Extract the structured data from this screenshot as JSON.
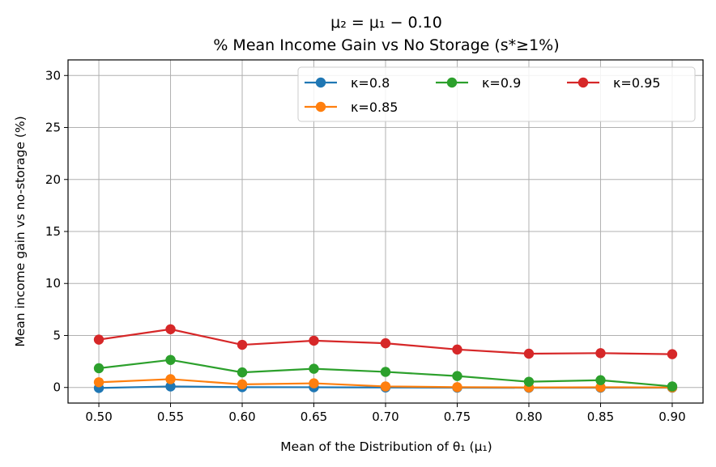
{
  "chart_data": {
    "type": "line",
    "title": "μ₂ = μ₁ − 0.10",
    "subtitle": "% Mean Income Gain vs No Storage (s*≥1%)",
    "xlabel": "Mean of the Distribution of θ₁ (μ₁)",
    "ylabel": "Mean income gain vs no-storage (%)",
    "x": [
      0.5,
      0.55,
      0.6,
      0.65,
      0.7,
      0.75,
      0.8,
      0.85,
      0.9
    ],
    "x_tick_labels": [
      "0.50",
      "0.55",
      "0.60",
      "0.65",
      "0.70",
      "0.75",
      "0.80",
      "0.85",
      "0.90"
    ],
    "y_ticks": [
      0,
      5,
      10,
      15,
      20,
      25,
      30
    ],
    "y_tick_labels": [
      "0",
      "5",
      "10",
      "15",
      "20",
      "25",
      "30"
    ],
    "xlim": [
      0.4785,
      0.9215
    ],
    "ylim": [
      -1.5,
      31.5
    ],
    "grid": true,
    "legend_position": "top-right",
    "series": [
      {
        "name": "κ=0.8",
        "color": "#1f77b4",
        "values": [
          -0.05,
          0.1,
          0.03,
          0.02,
          0.0,
          -0.02,
          -0.03,
          -0.02,
          -0.02
        ]
      },
      {
        "name": "κ=0.85",
        "color": "#ff7f0e",
        "values": [
          0.5,
          0.8,
          0.3,
          0.4,
          0.1,
          0.03,
          0.0,
          0.02,
          0.0
        ]
      },
      {
        "name": "κ=0.9",
        "color": "#2ca02c",
        "values": [
          1.85,
          2.65,
          1.45,
          1.8,
          1.5,
          1.1,
          0.55,
          0.7,
          0.1
        ]
      },
      {
        "name": "κ=0.95",
        "color": "#d62728",
        "values": [
          4.6,
          5.6,
          4.1,
          4.5,
          4.25,
          3.65,
          3.25,
          3.3,
          3.2
        ]
      }
    ]
  }
}
